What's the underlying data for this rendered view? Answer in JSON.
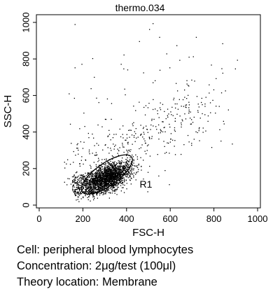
{
  "chart_data": {
    "type": "scatter",
    "title": "thermo.034",
    "xlabel": "FSC-H",
    "ylabel": "SSC-H",
    "xlim": [
      0,
      1000
    ],
    "ylim": [
      0,
      1000
    ],
    "x_ticks": [
      "0",
      "200",
      "400",
      "600",
      "800",
      "1000"
    ],
    "y_ticks": [
      "0",
      "200",
      "400",
      "600",
      "800",
      "1000"
    ],
    "grid": false,
    "legend": "none",
    "point_color": "#000000",
    "main_population": {
      "description_center": [
        310,
        150
      ],
      "approx_count": 2400
    },
    "gate": {
      "label": "R1",
      "shape": "ellipse",
      "center": [
        310,
        168
      ],
      "semi_major_axis": 138,
      "semi_minor_axis": 52,
      "rotation_deg": 35,
      "color": "#000000"
    }
  },
  "caption": {
    "cell": "Cell: peripheral blood lymphocytes",
    "concentration": "Concentration: 2μg/test (100μl)",
    "location": "Theory location: Membrane"
  }
}
